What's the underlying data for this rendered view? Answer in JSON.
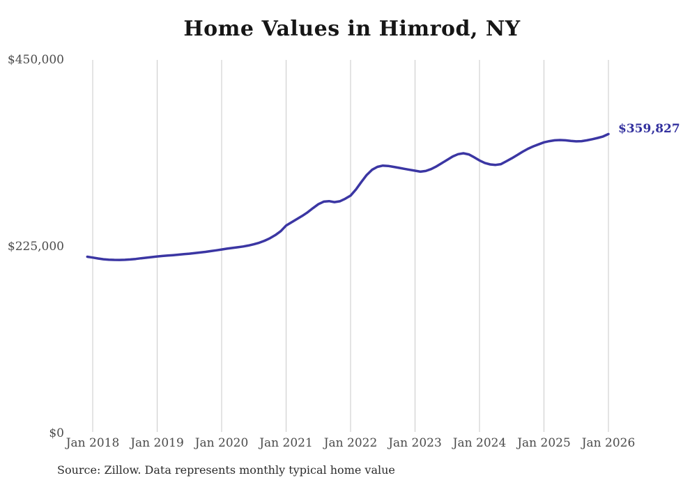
{
  "chart": {
    "title": "Home Values in Himrod, NY",
    "end_label": "$359,827",
    "source": "Source: Zillow. Data represents monthly typical home value",
    "colors": {
      "line": "#3b36a3",
      "end_label": "#32309e",
      "grid": "#c9c9c9",
      "axis_text": "#4b4b4b",
      "title_text": "#161616",
      "source_text": "#2b2b2b"
    }
  },
  "chart_data": {
    "type": "line",
    "title": "Home Values in Himrod, NY",
    "xlabel": "",
    "ylabel": "",
    "ylim": [
      0,
      450000
    ],
    "grid": "vertical-only",
    "legend": "none",
    "x_tick_labels": [
      "Jan 2018",
      "Jan 2019",
      "Jan 2020",
      "Jan 2021",
      "Jan 2022",
      "Jan 2023",
      "Jan 2024",
      "Jan 2025",
      "Jan 2026"
    ],
    "y_ticks": [
      {
        "value": 0,
        "label": "$0"
      },
      {
        "value": 225000,
        "label": "$225,000"
      },
      {
        "value": 450000,
        "label": "$450,000"
      }
    ],
    "annotation": {
      "text": "$359,827",
      "value": 359827,
      "position": "line-end"
    },
    "source": "Source: Zillow. Data represents monthly typical home value",
    "x": [
      "2017-12",
      "2018-01",
      "2018-02",
      "2018-03",
      "2018-04",
      "2018-05",
      "2018-06",
      "2018-07",
      "2018-08",
      "2018-09",
      "2018-10",
      "2018-11",
      "2018-12",
      "2019-01",
      "2019-02",
      "2019-03",
      "2019-04",
      "2019-05",
      "2019-06",
      "2019-07",
      "2019-08",
      "2019-09",
      "2019-10",
      "2019-11",
      "2019-12",
      "2020-01",
      "2020-02",
      "2020-03",
      "2020-04",
      "2020-05",
      "2020-06",
      "2020-07",
      "2020-08",
      "2020-09",
      "2020-10",
      "2020-11",
      "2020-12",
      "2021-01",
      "2021-02",
      "2021-03",
      "2021-04",
      "2021-05",
      "2021-06",
      "2021-07",
      "2021-08",
      "2021-09",
      "2021-10",
      "2021-11",
      "2021-12",
      "2022-01",
      "2022-02",
      "2022-03",
      "2022-04",
      "2022-05",
      "2022-06",
      "2022-07",
      "2022-08",
      "2022-09",
      "2022-10",
      "2022-11",
      "2022-12",
      "2023-01",
      "2023-02",
      "2023-03",
      "2023-04",
      "2023-05",
      "2023-06",
      "2023-07",
      "2023-08",
      "2023-09",
      "2023-10",
      "2023-11",
      "2023-12",
      "2024-01",
      "2024-02",
      "2024-03",
      "2024-04",
      "2024-05",
      "2024-06",
      "2024-07",
      "2024-08",
      "2024-09",
      "2024-10",
      "2024-11",
      "2024-12",
      "2025-01",
      "2025-02",
      "2025-03",
      "2025-04",
      "2025-05",
      "2025-06",
      "2025-07",
      "2025-08",
      "2025-09",
      "2025-10",
      "2025-11",
      "2025-12",
      "2026-01"
    ],
    "values": [
      212000,
      211000,
      209900,
      209000,
      208500,
      208200,
      208100,
      208300,
      208700,
      209300,
      210100,
      210800,
      211600,
      212300,
      212900,
      213400,
      213900,
      214500,
      215100,
      215700,
      216400,
      217100,
      217900,
      218800,
      219700,
      220700,
      221700,
      222600,
      223400,
      224300,
      225500,
      227000,
      228900,
      231300,
      234300,
      238100,
      242800,
      249500,
      253500,
      257300,
      261200,
      265500,
      270500,
      275300,
      278400,
      279000,
      277800,
      278800,
      281800,
      285600,
      293000,
      302000,
      310500,
      316800,
      320300,
      321800,
      321400,
      320300,
      319100,
      317900,
      316800,
      315700,
      314500,
      315300,
      317600,
      320900,
      324800,
      328800,
      332800,
      335600,
      336700,
      335300,
      331900,
      328000,
      325000,
      323200,
      322600,
      323600,
      327000,
      330600,
      334500,
      338400,
      342000,
      345000,
      347400,
      349800,
      351300,
      352300,
      352600,
      352300,
      351500,
      351000,
      351300,
      352300,
      353600,
      355100,
      356900,
      359827
    ]
  }
}
